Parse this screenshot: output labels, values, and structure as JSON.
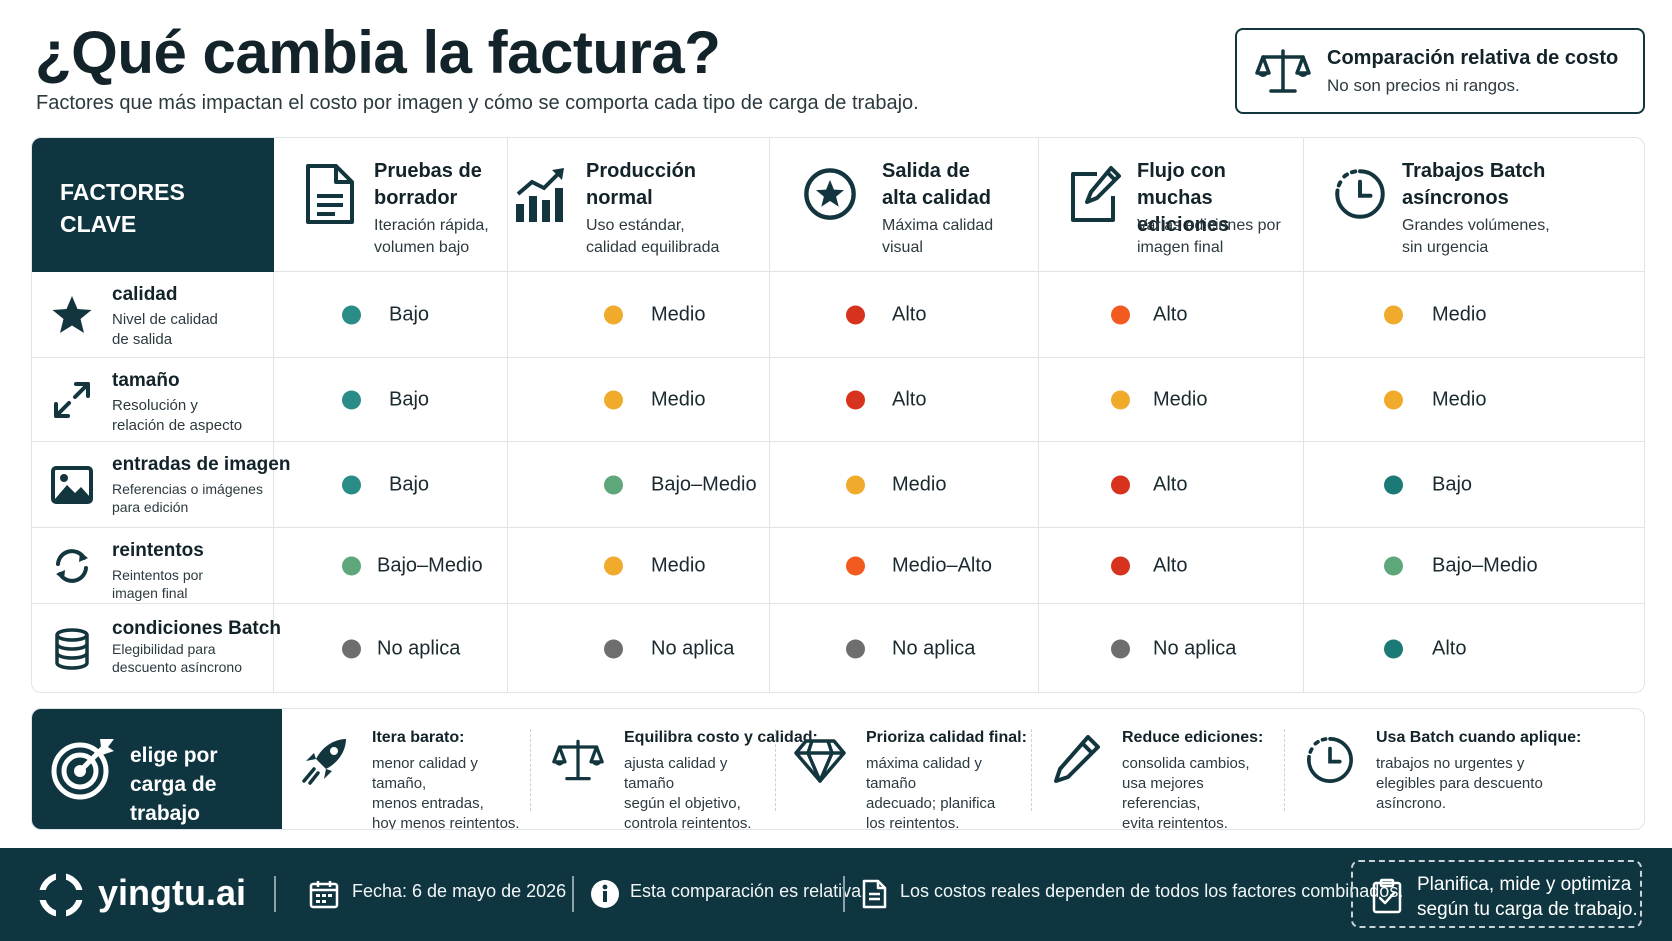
{
  "header": {
    "title": "¿Qué cambia la factura?",
    "subtitle": "Factores que más impactan el costo por imagen y cómo se comporta cada tipo de carga de trabajo."
  },
  "note": {
    "title": "Comparación relativa de costo",
    "text": "No son precios ni rangos.",
    "icon": "scale-icon"
  },
  "table": {
    "corner_label": "FACTORES\nCLAVE",
    "columns": [
      {
        "title": "Pruebas de\nborrador",
        "desc": "Iteración rápida,\nvolumen bajo",
        "icon": "document-icon"
      },
      {
        "title": "Producción\nnormal",
        "desc": "Uso estándar,\ncalidad equilibrada",
        "icon": "bar-chart-icon"
      },
      {
        "title": "Salida de\nalta calidad",
        "desc": "Máxima calidad\nvisual",
        "icon": "star-badge-icon"
      },
      {
        "title": "Flujo con\nmuchas ediciones",
        "desc": "Varias ediciones por\nimagen final",
        "icon": "edit-icon"
      },
      {
        "title": "Trabajos Batch\nasíncronos",
        "desc": "Grandes volúmenes,\nsin urgencia",
        "icon": "clock-icon"
      }
    ],
    "rows": [
      {
        "title": "calidad",
        "desc": "Nivel de calidad\nde salida",
        "icon": "star-icon",
        "cells": [
          {
            "label": "Bajo",
            "color": "#2a8c86"
          },
          {
            "label": "Medio",
            "color": "#f0aa2c"
          },
          {
            "label": "Alto",
            "color": "#d7321e"
          },
          {
            "label": "Alto",
            "color": "#f15b1f"
          },
          {
            "label": "Medio",
            "color": "#f0aa2c"
          }
        ]
      },
      {
        "title": "tamaño",
        "desc": "Resolución y\nrelación de aspecto",
        "icon": "resize-arrows-icon",
        "cells": [
          {
            "label": "Bajo",
            "color": "#2a8c86"
          },
          {
            "label": "Medio",
            "color": "#f0aa2c"
          },
          {
            "label": "Alto",
            "color": "#d7321e"
          },
          {
            "label": "Medio",
            "color": "#f0aa2c"
          },
          {
            "label": "Medio",
            "color": "#f0aa2c"
          }
        ]
      },
      {
        "title": "entradas de imagen",
        "desc": "Referencias o imágenes\npara edición",
        "icon": "image-icon",
        "cells": [
          {
            "label": "Bajo",
            "color": "#2a8c86"
          },
          {
            "label": "Bajo–Medio",
            "color": "#5ea77a"
          },
          {
            "label": "Medio",
            "color": "#f0aa2c"
          },
          {
            "label": "Alto",
            "color": "#d7321e"
          },
          {
            "label": "Bajo",
            "color": "#1b7a76"
          }
        ]
      },
      {
        "title": "reintentos",
        "desc": "Reintentos por\nimagen final",
        "icon": "retry-icon",
        "cells": [
          {
            "label": "Bajo–Medio",
            "color": "#5ea77a"
          },
          {
            "label": "Medio",
            "color": "#f0aa2c"
          },
          {
            "label": "Medio–Alto",
            "color": "#f15b1f"
          },
          {
            "label": "Alto",
            "color": "#d7321e"
          },
          {
            "label": "Bajo–Medio",
            "color": "#5ea77a"
          }
        ]
      },
      {
        "title": "condiciones Batch",
        "desc": "Elegibilidad para\ndescuento asíncrono",
        "icon": "database-icon",
        "cells": [
          {
            "label": "No aplica",
            "color": "#6e6e6e"
          },
          {
            "label": "No aplica",
            "color": "#6e6e6e"
          },
          {
            "label": "No aplica",
            "color": "#6e6e6e"
          },
          {
            "label": "No aplica",
            "color": "#6e6e6e"
          },
          {
            "label": "Alto",
            "color": "#1b7a76"
          }
        ]
      }
    ]
  },
  "recommendations": {
    "heading": "elige por\ncarga de trabajo",
    "heading_icon": "target-icon",
    "items": [
      {
        "title": "Itera barato:",
        "desc": "menor calidad y tamaño,\nmenos entradas,\nhoy menos reintentos.",
        "icon": "rocket-icon"
      },
      {
        "title": "Equilibra costo y calidad:",
        "desc": "ajusta calidad y tamaño\nsegún el objetivo,\ncontrola reintentos.",
        "icon": "scale-icon"
      },
      {
        "title": "Prioriza calidad final:",
        "desc": "máxima calidad y tamaño\nadecuado; planifica\nlos reintentos.",
        "icon": "diamond-icon"
      },
      {
        "title": "Reduce ediciones:",
        "desc": "consolida cambios,\nusa mejores referencias,\nevita reintentos.",
        "icon": "pencil-icon"
      },
      {
        "title": "Usa Batch cuando aplique:",
        "desc": "trabajos no urgentes y\nelegibles para descuento\nasíncrono.",
        "icon": "clock-icon"
      }
    ]
  },
  "footer": {
    "brand": "yingtu.ai",
    "date": "Fecha: 6 de mayo de 2026",
    "info": "Esta comparación es relativa.",
    "costs": "Los costos reales dependen de todos los factores combinados.",
    "cta": "Planifica, mide y optimiza\nsegún tu carga de trabajo."
  },
  "colors": {
    "primary": "#0f3640",
    "low": "#2a8c86",
    "low_medium": "#5ea77a",
    "medium": "#f0aa2c",
    "medium_high": "#f15b1f",
    "high": "#d7321e",
    "na": "#6e6e6e"
  }
}
